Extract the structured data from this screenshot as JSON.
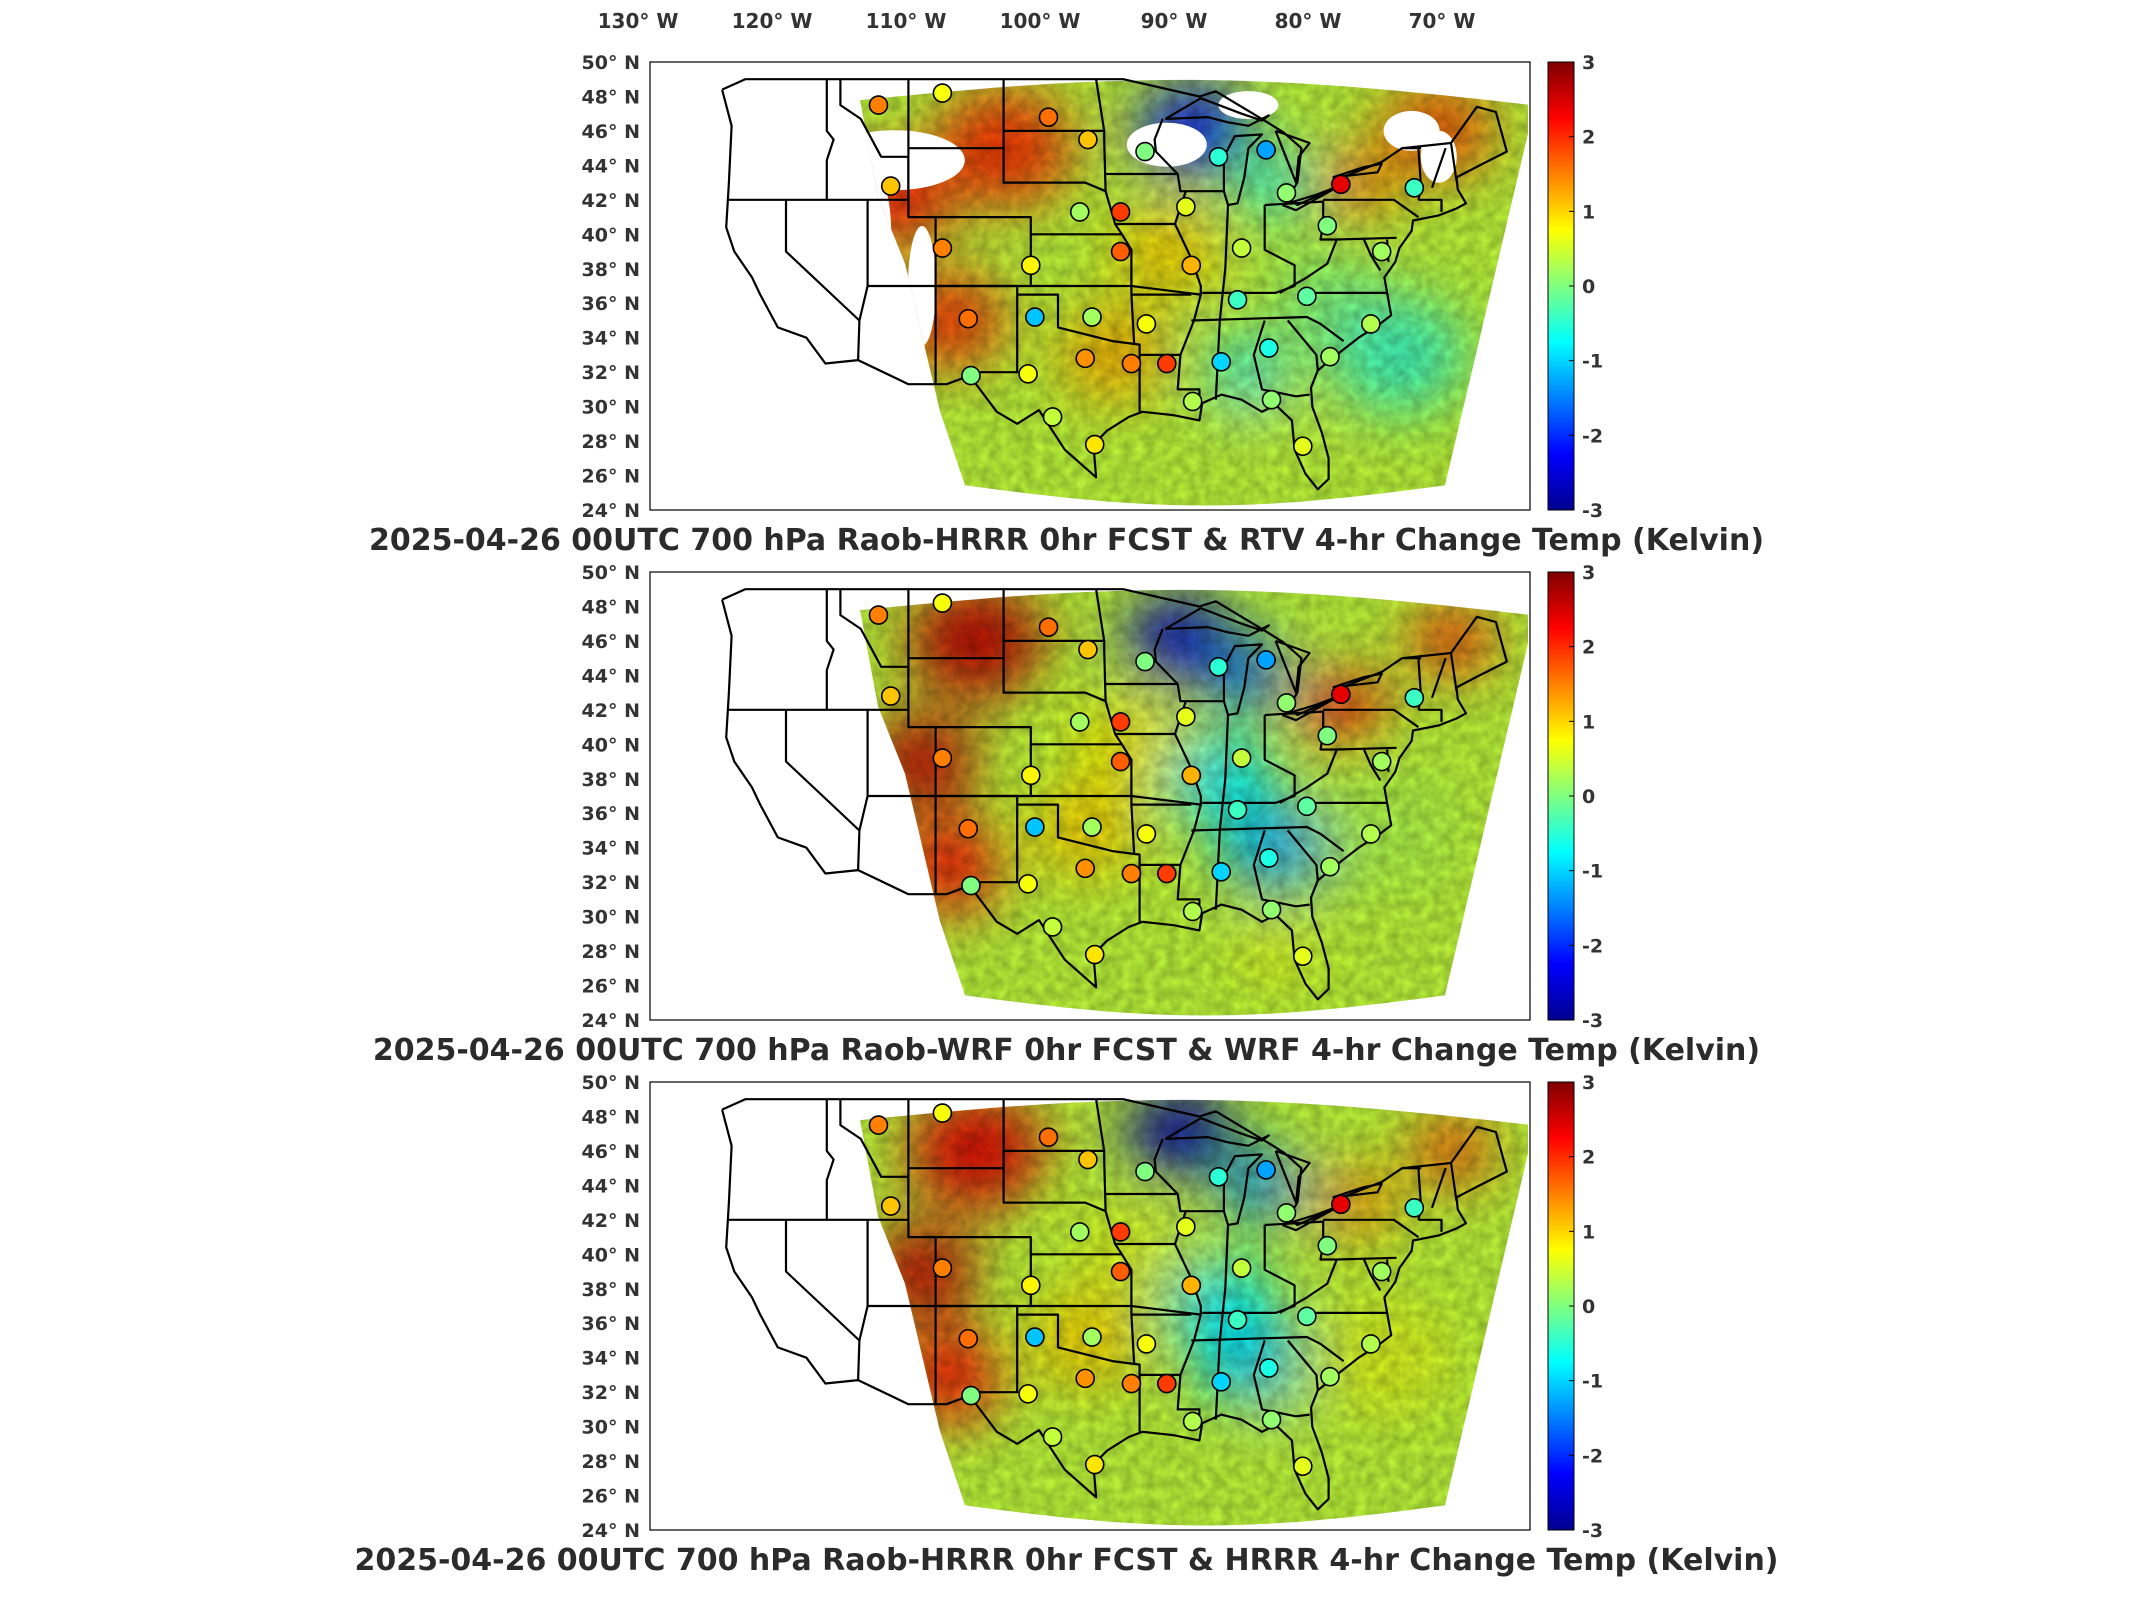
{
  "longitude_labels": [
    "130",
    "120",
    "110",
    "100",
    "90",
    "80",
    "70"
  ],
  "latitude_labels": [
    "50",
    "48",
    "46",
    "44",
    "42",
    "40",
    "38",
    "36",
    "34",
    "32",
    "30",
    "28",
    "26",
    "24"
  ],
  "lat_suffix": "N",
  "lon_suffix": "W",
  "degree_symbol": "°",
  "colorbar_ticks": [
    "3",
    "2",
    "1",
    "0",
    "-1",
    "-2",
    "-3"
  ],
  "colors": {
    "colormap": [
      "#00008f",
      "#0000ff",
      "#0080ff",
      "#00ffff",
      "#80ff80",
      "#ffff00",
      "#ff8000",
      "#ff0000",
      "#800000"
    ],
    "outline": "#000000",
    "title_text": "#2b2b2b"
  },
  "panels": [
    {
      "title": "2025-04-26 00UTC 700 hPa Raob-HRRR 0hr FCST & RTV 4-hr Change Temp (Kelvin)",
      "has_data_gaps": true
    },
    {
      "title": "2025-04-26 00UTC 700 hPa Raob-WRF 0hr FCST & WRF 4-hr Change Temp (Kelvin)",
      "has_data_gaps": false
    },
    {
      "title": "2025-04-26 00UTC 700 hPa Raob-HRRR 0hr FCST & HRRR 4-hr Change Temp (Kelvin)",
      "has_data_gaps": false
    }
  ],
  "raob_stations": [
    {
      "lon": -113.2,
      "lat": 47.5,
      "v": 1.5
    },
    {
      "lon": -108.5,
      "lat": 48.2,
      "v": 0.7
    },
    {
      "lon": -100.7,
      "lat": 46.8,
      "v": 1.6
    },
    {
      "lon": -97.8,
      "lat": 45.5,
      "v": 1.1
    },
    {
      "lon": -93.6,
      "lat": 44.8,
      "v": 0.0
    },
    {
      "lon": -88.2,
      "lat": 44.5,
      "v": -0.5
    },
    {
      "lon": -84.7,
      "lat": 44.9,
      "v": -1.3
    },
    {
      "lon": -112.3,
      "lat": 42.8,
      "v": 1.1
    },
    {
      "lon": -98.4,
      "lat": 41.3,
      "v": 0.2
    },
    {
      "lon": -95.4,
      "lat": 41.3,
      "v": 1.9
    },
    {
      "lon": -90.6,
      "lat": 41.6,
      "v": 0.6
    },
    {
      "lon": -83.2,
      "lat": 42.4,
      "v": 0.1
    },
    {
      "lon": -79.2,
      "lat": 42.9,
      "v": 2.4
    },
    {
      "lon": -73.8,
      "lat": 42.7,
      "v": -0.4
    },
    {
      "lon": -108.5,
      "lat": 39.2,
      "v": 1.5
    },
    {
      "lon": -102.0,
      "lat": 38.2,
      "v": 0.8
    },
    {
      "lon": -95.4,
      "lat": 39.0,
      "v": 1.7
    },
    {
      "lon": -90.2,
      "lat": 38.2,
      "v": 1.2
    },
    {
      "lon": -86.5,
      "lat": 39.2,
      "v": 0.4
    },
    {
      "lon": -80.2,
      "lat": 40.5,
      "v": 0.0
    },
    {
      "lon": -76.2,
      "lat": 39.0,
      "v": 0.2
    },
    {
      "lon": -106.6,
      "lat": 35.1,
      "v": 1.6
    },
    {
      "lon": -101.7,
      "lat": 35.2,
      "v": -1.1
    },
    {
      "lon": -97.5,
      "lat": 35.2,
      "v": 0.2
    },
    {
      "lon": -93.5,
      "lat": 34.8,
      "v": 0.7
    },
    {
      "lon": -86.8,
      "lat": 36.2,
      "v": -0.4
    },
    {
      "lon": -81.7,
      "lat": 36.4,
      "v": -0.2
    },
    {
      "lon": -77.0,
      "lat": 34.8,
      "v": 0.3
    },
    {
      "lon": -106.4,
      "lat": 31.8,
      "v": 0.0
    },
    {
      "lon": -102.2,
      "lat": 31.9,
      "v": 0.7
    },
    {
      "lon": -98.0,
      "lat": 32.8,
      "v": 1.4
    },
    {
      "lon": -94.6,
      "lat": 32.5,
      "v": 1.5
    },
    {
      "lon": -92.0,
      "lat": 32.5,
      "v": 1.9
    },
    {
      "lon": -88.0,
      "lat": 32.6,
      "v": -1.0
    },
    {
      "lon": -84.5,
      "lat": 33.4,
      "v": -0.6
    },
    {
      "lon": -80.0,
      "lat": 32.9,
      "v": 0.2
    },
    {
      "lon": -100.4,
      "lat": 29.4,
      "v": 0.4
    },
    {
      "lon": -97.3,
      "lat": 27.8,
      "v": 0.9
    },
    {
      "lon": -90.1,
      "lat": 30.3,
      "v": 0.3
    },
    {
      "lon": -84.3,
      "lat": 30.4,
      "v": 0.1
    },
    {
      "lon": -82.0,
      "lat": 27.7,
      "v": 0.6
    }
  ]
}
